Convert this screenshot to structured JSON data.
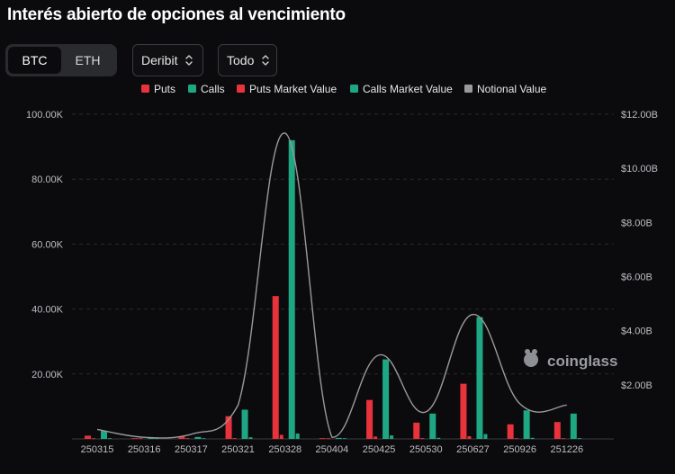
{
  "title": "Interés abierto de opciones al vencimiento",
  "coin_tabs": [
    {
      "label": "BTC",
      "active": true
    },
    {
      "label": "ETH",
      "active": false
    }
  ],
  "exchange_select": {
    "value": "Deribit"
  },
  "range_select": {
    "value": "Todo"
  },
  "watermark": "coinglass",
  "colors": {
    "puts": "#e8333d",
    "calls": "#1fa784",
    "puts_market_value": "#e8333d",
    "calls_market_value": "#1fa784",
    "notional": "#9a9a9a"
  },
  "chart_data": {
    "type": "bar",
    "legend_position": "top",
    "legend": [
      "Puts",
      "Calls",
      "Puts Market Value",
      "Calls Market Value",
      "Notional Value"
    ],
    "categories": [
      "250315",
      "250316",
      "250317",
      "250321",
      "250328",
      "250404",
      "250425",
      "250530",
      "250627",
      "250926",
      "251226"
    ],
    "left_axis": {
      "ylim": [
        0,
        100000
      ],
      "ticks": [
        {
          "value": 0,
          "label": ""
        },
        {
          "value": 20000,
          "label": "20.00K"
        },
        {
          "value": 40000,
          "label": "40.00K"
        },
        {
          "value": 60000,
          "label": "60.00K"
        },
        {
          "value": 80000,
          "label": "80.00K"
        },
        {
          "value": 100000,
          "label": "100.00K"
        }
      ]
    },
    "right_axis": {
      "ylim": [
        0,
        12000000000
      ],
      "ticks": [
        {
          "value": 2000000000,
          "label": "$2.00B"
        },
        {
          "value": 4000000000,
          "label": "$4.00B"
        },
        {
          "value": 6000000000,
          "label": "$6.00B"
        },
        {
          "value": 8000000000,
          "label": "$8.00B"
        },
        {
          "value": 10000000000,
          "label": "$10.00B"
        },
        {
          "value": 12000000000,
          "label": "$12.00B"
        }
      ]
    },
    "grid": true,
    "series": [
      {
        "name": "Puts",
        "axis": "left",
        "values": [
          1000,
          150,
          800,
          7000,
          44000,
          200,
          12000,
          5000,
          17000,
          4500,
          5200
        ]
      },
      {
        "name": "Calls",
        "axis": "left",
        "values": [
          2500,
          300,
          600,
          9000,
          92000,
          300,
          24500,
          7800,
          37500,
          8800,
          7800
        ]
      },
      {
        "name": "Puts Market Value",
        "axis": "right",
        "values": [
          5000000,
          1000000,
          5000000,
          30000000,
          150000000,
          1000000,
          90000000,
          30000000,
          100000000,
          25000000,
          20000000
        ]
      },
      {
        "name": "Calls Market Value",
        "axis": "right",
        "values": [
          20000000,
          3000000,
          10000000,
          60000000,
          200000000,
          2000000,
          130000000,
          40000000,
          180000000,
          40000000,
          30000000
        ]
      },
      {
        "name": "Notional Value",
        "axis": "right",
        "values": [
          350000000,
          60000000,
          170000000,
          1250000000,
          11300000000,
          60000000,
          3100000000,
          1000000000,
          4600000000,
          1300000000,
          1250000000
        ]
      }
    ]
  }
}
